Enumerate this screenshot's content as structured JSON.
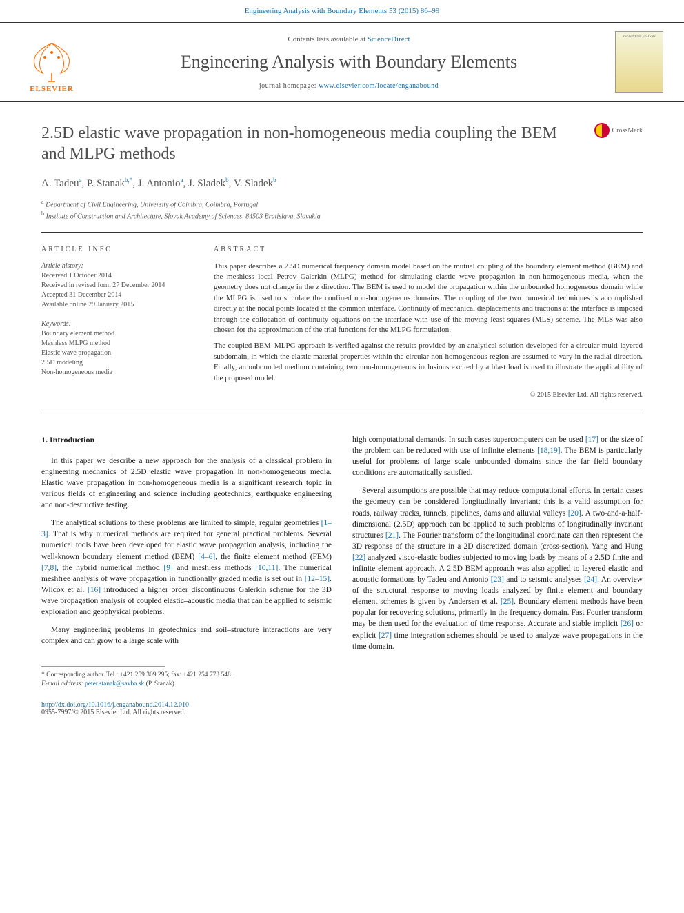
{
  "header": {
    "citation": "Engineering Analysis with Boundary Elements 53 (2015) 86–99",
    "lists_prefix": "Contents lists available at ",
    "lists_link": "ScienceDirect",
    "journal_name": "Engineering Analysis with Boundary Elements",
    "homepage_prefix": "journal homepage: ",
    "homepage_link": "www.elsevier.com/locate/enganabound",
    "elsevier": "ELSEVIER",
    "crossmark": "CrossMark"
  },
  "title": "2.5D elastic wave propagation in non-homogeneous media coupling the BEM and MLPG methods",
  "authors_html": "A. Tadeu<sup>a</sup>, P. Stanak<sup>b,*</sup>, J. Antonio<sup>a</sup>, J. Sladek<sup>b</sup>, V. Sladek<sup>b</sup>",
  "affiliations": {
    "a": "Department of Civil Engineering, University of Coimbra, Coimbra, Portugal",
    "b": "Institute of Construction and Architecture, Slovak Academy of Sciences, 84503 Bratislava, Slovakia"
  },
  "article_info": {
    "heading": "ARTICLE INFO",
    "history_label": "Article history:",
    "received": "Received 1 October 2014",
    "revised": "Received in revised form 27 December 2014",
    "accepted": "Accepted 31 December 2014",
    "online": "Available online 29 January 2015",
    "keywords_label": "Keywords:",
    "keywords": [
      "Boundary element method",
      "Meshless MLPG method",
      "Elastic wave propagation",
      "2.5D modeling",
      "Non-homogeneous media"
    ]
  },
  "abstract": {
    "heading": "ABSTRACT",
    "p1": "This paper describes a 2.5D numerical frequency domain model based on the mutual coupling of the boundary element method (BEM) and the meshless local Petrov–Galerkin (MLPG) method for simulating elastic wave propagation in non-homogeneous media, when the geometry does not change in the z direction. The BEM is used to model the propagation within the unbounded homogeneous domain while the MLPG is used to simulate the confined non-homogeneous domains. The coupling of the two numerical techniques is accomplished directly at the nodal points located at the common interface. Continuity of mechanical displacements and tractions at the interface is imposed through the collocation of continuity equations on the interface with use of the moving least-squares (MLS) scheme. The MLS was also chosen for the approximation of the trial functions for the MLPG formulation.",
    "p2": "The coupled BEM–MLPG approach is verified against the results provided by an analytical solution developed for a circular multi-layered subdomain, in which the elastic material properties within the circular non-homogeneous region are assumed to vary in the radial direction. Finally, an unbounded medium containing two non-homogeneous inclusions excited by a blast load is used to illustrate the applicability of the proposed model.",
    "copyright": "© 2015 Elsevier Ltd. All rights reserved."
  },
  "section1": {
    "heading": "1.  Introduction",
    "p1": "In this paper we describe a new approach for the analysis of a classical problem in engineering mechanics of 2.5D elastic wave propagation in non-homogeneous media. Elastic wave propagation in non-homogeneous media is a significant research topic in various fields of engineering and science including geotechnics, earthquake engineering and non-destructive testing.",
    "p2_a": "The analytical solutions to these problems are limited to simple, regular geometries ",
    "p2_ref1": "[1–3]",
    "p2_b": ". That is why numerical methods are required for general practical problems. Several numerical tools have been developed for elastic wave propagation analysis, including the well-known boundary element method (BEM) ",
    "p2_ref2": "[4–6]",
    "p2_c": ", the finite element method (FEM) ",
    "p2_ref3": "[7,8]",
    "p2_d": ", the hybrid numerical method ",
    "p2_ref4": "[9]",
    "p2_e": " and meshless methods ",
    "p2_ref5": "[10,11]",
    "p2_f": ". The numerical meshfree analysis of wave propagation in functionally graded media is set out in ",
    "p2_ref6": "[12–15]",
    "p2_g": ". Wilcox et al. ",
    "p2_ref7": "[16]",
    "p2_h": " introduced a higher order discontinuous Galerkin scheme for the 3D wave propagation analysis of coupled elastic–acoustic media that can be applied to seismic exploration and geophysical problems.",
    "p3": "Many engineering problems in geotechnics and soil–structure interactions are very complex and can grow to a large scale with",
    "p4_a": "high computational demands. In such cases supercomputers can be used ",
    "p4_ref1": "[17]",
    "p4_b": " or the size of the problem can be reduced with use of infinite elements ",
    "p4_ref2": "[18,19]",
    "p4_c": ". The BEM is particularly useful for problems of large scale unbounded domains since the far field boundary conditions are automatically satisfied.",
    "p5_a": "Several assumptions are possible that may reduce computational efforts. In certain cases the geometry can be considered longitudinally invariant; this is a valid assumption for roads, railway tracks, tunnels, pipelines, dams and alluvial valleys ",
    "p5_ref1": "[20]",
    "p5_b": ". A two-and-a-half-dimensional (2.5D) approach can be applied to such problems of longitudinally invariant structures ",
    "p5_ref2": "[21]",
    "p5_c": ". The Fourier transform of the longitudinal coordinate can then represent the 3D response of the structure in a 2D discretized domain (cross-section). Yang and Hung ",
    "p5_ref3": "[22]",
    "p5_d": " analyzed visco-elastic bodies subjected to moving loads by means of a 2.5D finite and infinite element approach. A 2.5D BEM approach was also applied to layered elastic and acoustic formations by Tadeu and Antonio ",
    "p5_ref4": "[23]",
    "p5_e": " and to seismic analyses ",
    "p5_ref5": "[24]",
    "p5_f": ". An overview of the structural response to moving loads analyzed by finite element and boundary element schemes is given by Andersen et al. ",
    "p5_ref6": "[25]",
    "p5_g": ". Boundary element methods have been popular for recovering solutions, primarily in the frequency domain. Fast Fourier transform may be then used for the evaluation of time response. Accurate and stable implicit ",
    "p5_ref7": "[26]",
    "p5_h": " or explicit ",
    "p5_ref8": "[27]",
    "p5_i": " time integration schemes should be used to analyze wave propagations in the time domain."
  },
  "footnotes": {
    "corresponding": "* Corresponding author. Tel.: +421 259 309 295; fax: +421 254 773 548.",
    "email_label": "E-mail address: ",
    "email": "peter.stanak@savba.sk",
    "email_suffix": " (P. Stanak)."
  },
  "doi": {
    "link": "http://dx.doi.org/10.1016/j.enganabound.2014.12.010",
    "issn": "0955-7997/© 2015 Elsevier Ltd. All rights reserved."
  },
  "colors": {
    "link": "#1a6faa",
    "elsevier_orange": "#ff6b00",
    "text": "#333333"
  }
}
